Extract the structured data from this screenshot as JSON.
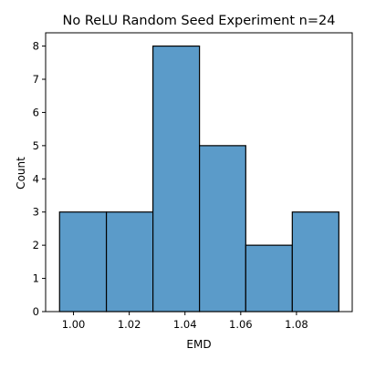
{
  "chart_data": {
    "type": "bar",
    "subtype": "histogram",
    "title": "No ReLU Random Seed Experiment n=24",
    "xlabel": "EMD",
    "ylabel": "Count",
    "bins": [
      {
        "x0": 0.995,
        "x1": 1.0118,
        "count": 3
      },
      {
        "x0": 1.0118,
        "x1": 1.0285,
        "count": 3
      },
      {
        "x0": 1.0285,
        "x1": 1.0452,
        "count": 8
      },
      {
        "x0": 1.0452,
        "x1": 1.0618,
        "count": 5
      },
      {
        "x0": 1.0618,
        "x1": 1.0785,
        "count": 2
      },
      {
        "x0": 1.0785,
        "x1": 1.0952,
        "count": 3
      }
    ],
    "xlim": [
      0.99,
      1.1
    ],
    "ylim": [
      0,
      8.4
    ],
    "xticks": [
      1.0,
      1.02,
      1.04,
      1.06,
      1.08
    ],
    "xtick_labels": [
      "1.00",
      "1.02",
      "1.04",
      "1.06",
      "1.08"
    ],
    "yticks": [
      0,
      1,
      2,
      3,
      4,
      5,
      6,
      7,
      8
    ],
    "ytick_labels": [
      "0",
      "1",
      "2",
      "3",
      "4",
      "5",
      "6",
      "7",
      "8"
    ],
    "grid": false,
    "legend": "none",
    "colors": {
      "bar_fill": "#5b9bc9",
      "bar_edge": "#000000",
      "axis": "#000000"
    }
  }
}
